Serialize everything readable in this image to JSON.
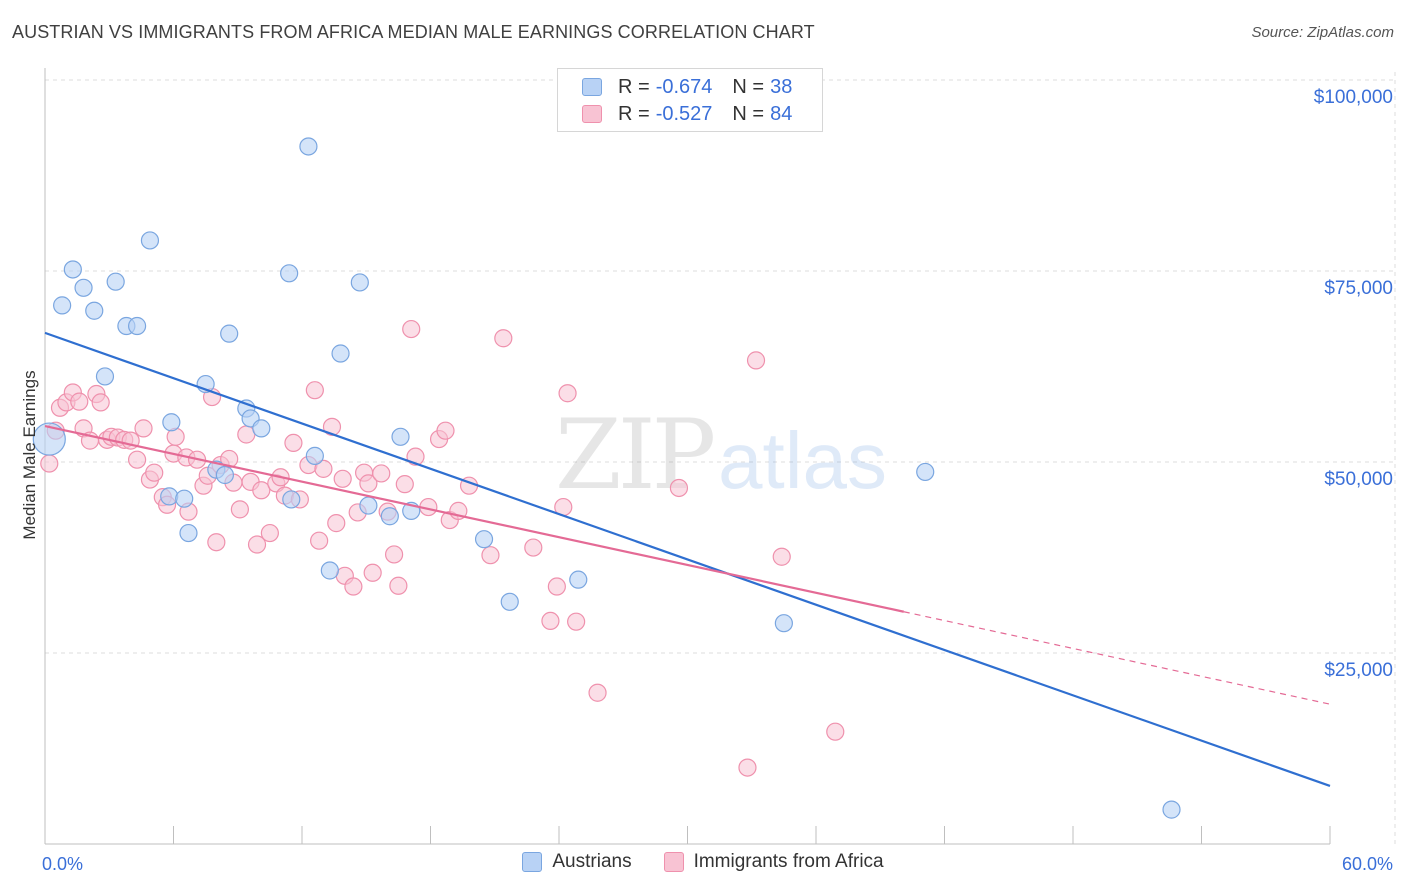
{
  "header": {
    "title": "AUSTRIAN VS IMMIGRANTS FROM AFRICA MEDIAN MALE EARNINGS CORRELATION CHART",
    "source": "Source: ZipAtlas.com"
  },
  "watermark": {
    "zip": "ZIP",
    "atlas": "atlas"
  },
  "stats_legend": {
    "rows": [
      {
        "r_label": "R =",
        "r_value": "-0.674",
        "n_label": "N =",
        "n_value": "38"
      },
      {
        "r_label": "R =",
        "r_value": "-0.527",
        "n_label": "N =",
        "n_value": "84"
      }
    ]
  },
  "colors": {
    "austrians_fill": "#b8d2f5",
    "austrians_stroke": "#7aa6e0",
    "austrians_line": "#2f6fd0",
    "africa_fill": "#f8c3d3",
    "africa_stroke": "#ef91ad",
    "africa_line": "#e46a95",
    "axis_text": "#3a6fd8",
    "grid": "#dddddd"
  },
  "chart_data": {
    "type": "scatter",
    "title": "AUSTRIAN VS IMMIGRANTS FROM AFRICA MEDIAN MALE EARNINGS CORRELATION CHART",
    "xlabel": "",
    "ylabel": "Median Male Earnings",
    "xlim": [
      0,
      60
    ],
    "ylim": [
      0,
      105000
    ],
    "x_tick_labels": [
      "0.0%",
      "60.0%"
    ],
    "y_ticks": [
      25000,
      50000,
      75000,
      100000
    ],
    "y_tick_labels": [
      "$25,000",
      "$50,000",
      "$75,000",
      "$100,000"
    ],
    "grid": true,
    "legend_position": "bottom",
    "series": [
      {
        "name": "Austrians",
        "r": -0.674,
        "n": 38,
        "trend": {
          "x0": 0,
          "y0": 66900,
          "x1": 60,
          "y1": 7600
        },
        "points": [
          [
            0.2,
            53000
          ],
          [
            0.8,
            70500
          ],
          [
            1.3,
            75200
          ],
          [
            1.8,
            72800
          ],
          [
            2.3,
            69800
          ],
          [
            3.3,
            73600
          ],
          [
            3.8,
            67800
          ],
          [
            4.3,
            67800
          ],
          [
            2.8,
            61200
          ],
          [
            4.9,
            79000
          ],
          [
            5.8,
            45500
          ],
          [
            5.9,
            55200
          ],
          [
            6.5,
            45200
          ],
          [
            6.7,
            40700
          ],
          [
            7.5,
            60200
          ],
          [
            8.0,
            49000
          ],
          [
            8.4,
            48300
          ],
          [
            8.6,
            66800
          ],
          [
            9.4,
            57000
          ],
          [
            9.6,
            55700
          ],
          [
            10.1,
            54400
          ],
          [
            11.4,
            74700
          ],
          [
            11.5,
            45100
          ],
          [
            12.3,
            91300
          ],
          [
            12.6,
            50800
          ],
          [
            13.3,
            35800
          ],
          [
            13.8,
            64200
          ],
          [
            14.7,
            73500
          ],
          [
            15.1,
            44300
          ],
          [
            16.1,
            42900
          ],
          [
            16.6,
            53300
          ],
          [
            17.1,
            43600
          ],
          [
            20.5,
            39900
          ],
          [
            21.7,
            31700
          ],
          [
            24.9,
            34600
          ],
          [
            34.5,
            28900
          ],
          [
            41.1,
            48700
          ],
          [
            52.6,
            4500
          ]
        ]
      },
      {
        "name": "Immigrants from Africa",
        "r": -0.527,
        "n": 84,
        "trend": {
          "x0": 0,
          "y0": 54700,
          "x1": 40.1,
          "y1": 30400,
          "dash_x1": 60,
          "dash_y1": 18300
        },
        "points": [
          [
            0.2,
            49800
          ],
          [
            0.5,
            54100
          ],
          [
            0.7,
            57100
          ],
          [
            1.0,
            57800
          ],
          [
            1.3,
            59100
          ],
          [
            1.6,
            57900
          ],
          [
            1.8,
            54400
          ],
          [
            2.1,
            52800
          ],
          [
            2.4,
            58900
          ],
          [
            2.6,
            57800
          ],
          [
            2.9,
            52900
          ],
          [
            3.1,
            53300
          ],
          [
            3.4,
            53200
          ],
          [
            3.7,
            52900
          ],
          [
            4.0,
            52800
          ],
          [
            4.3,
            50300
          ],
          [
            4.6,
            54400
          ],
          [
            4.9,
            47700
          ],
          [
            5.1,
            48600
          ],
          [
            5.5,
            45400
          ],
          [
            5.7,
            44400
          ],
          [
            6.0,
            51100
          ],
          [
            6.1,
            53300
          ],
          [
            6.6,
            50600
          ],
          [
            6.7,
            43500
          ],
          [
            7.1,
            50300
          ],
          [
            7.4,
            46900
          ],
          [
            7.6,
            48200
          ],
          [
            7.8,
            58500
          ],
          [
            8.0,
            39500
          ],
          [
            8.2,
            49600
          ],
          [
            8.6,
            50400
          ],
          [
            8.8,
            47300
          ],
          [
            9.1,
            43800
          ],
          [
            9.4,
            53600
          ],
          [
            9.6,
            47400
          ],
          [
            9.9,
            39200
          ],
          [
            10.1,
            46300
          ],
          [
            10.5,
            40700
          ],
          [
            10.8,
            47200
          ],
          [
            11.0,
            48000
          ],
          [
            11.2,
            45600
          ],
          [
            11.6,
            52500
          ],
          [
            11.9,
            45100
          ],
          [
            12.3,
            49600
          ],
          [
            12.6,
            59400
          ],
          [
            12.8,
            39700
          ],
          [
            13.0,
            49100
          ],
          [
            13.4,
            54600
          ],
          [
            13.6,
            42000
          ],
          [
            13.9,
            47800
          ],
          [
            14.0,
            35100
          ],
          [
            14.4,
            33700
          ],
          [
            14.6,
            43400
          ],
          [
            14.9,
            48600
          ],
          [
            15.1,
            47200
          ],
          [
            15.3,
            35500
          ],
          [
            15.7,
            48500
          ],
          [
            16.0,
            43500
          ],
          [
            16.3,
            37900
          ],
          [
            16.5,
            33800
          ],
          [
            16.8,
            47100
          ],
          [
            17.1,
            67400
          ],
          [
            17.3,
            50700
          ],
          [
            17.9,
            44100
          ],
          [
            18.4,
            53000
          ],
          [
            18.7,
            54100
          ],
          [
            18.9,
            42400
          ],
          [
            19.3,
            43600
          ],
          [
            19.8,
            46900
          ],
          [
            20.8,
            37800
          ],
          [
            21.4,
            66200
          ],
          [
            22.8,
            38800
          ],
          [
            23.6,
            29200
          ],
          [
            23.9,
            33700
          ],
          [
            24.4,
            59000
          ],
          [
            24.2,
            44100
          ],
          [
            24.8,
            29100
          ],
          [
            25.8,
            19800
          ],
          [
            29.6,
            46600
          ],
          [
            32.8,
            10000
          ],
          [
            33.2,
            63300
          ],
          [
            34.4,
            37600
          ],
          [
            36.9,
            14700
          ]
        ]
      }
    ]
  }
}
